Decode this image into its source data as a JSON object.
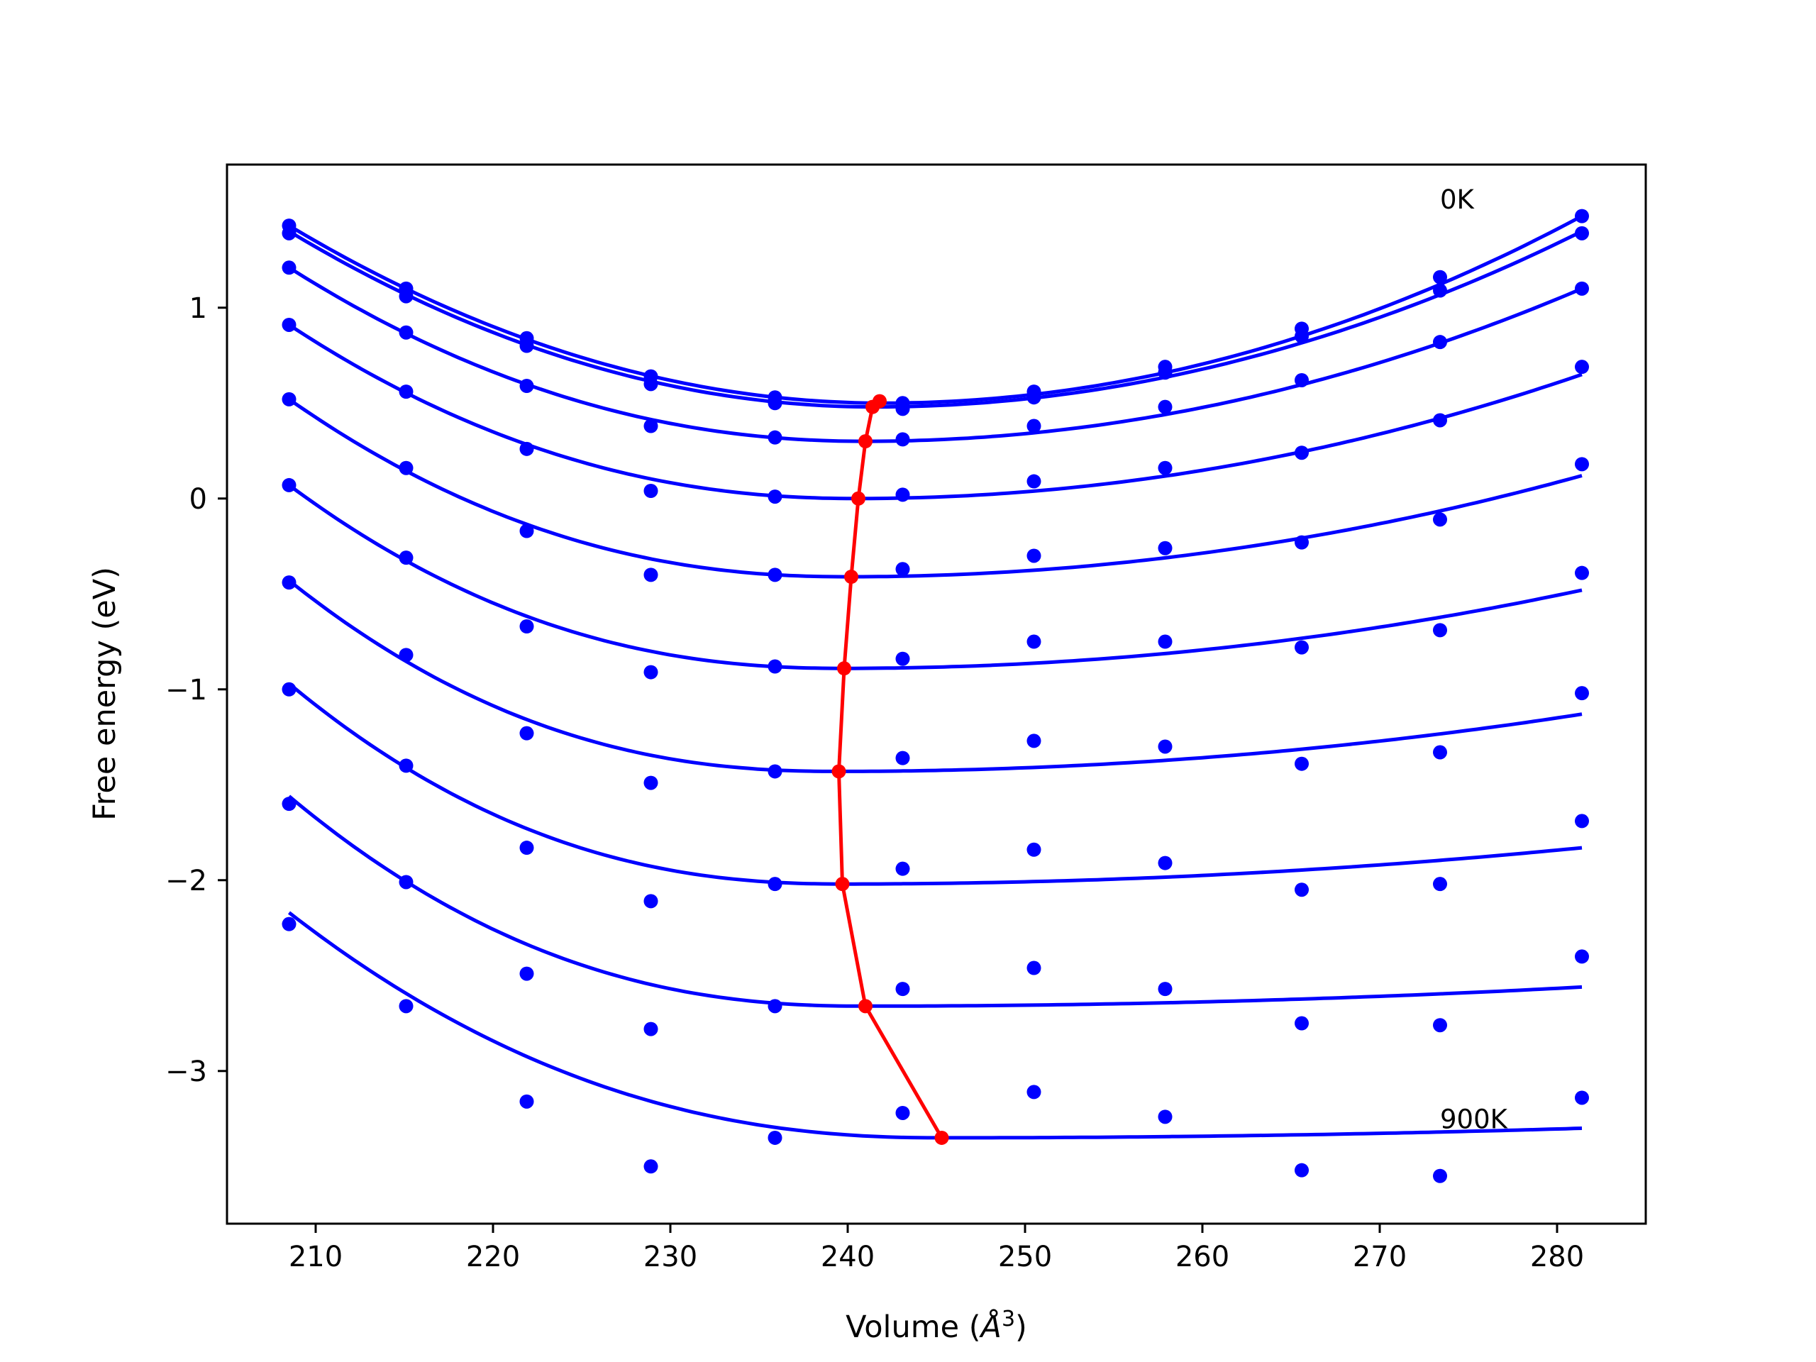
{
  "chart_data": {
    "type": "line",
    "xlabel": "Volume (",
    "xlabel_unit": "Å",
    "xlabel_exp": "3",
    "xlabel_close": ")",
    "ylabel": "Free energy (eV)",
    "xlim": [
      205,
      285
    ],
    "ylim": [
      -3.8,
      1.75
    ],
    "xticks": [
      210,
      220,
      230,
      240,
      250,
      260,
      270,
      280
    ],
    "xtick_labels": [
      "210",
      "220",
      "230",
      "240",
      "250",
      "260",
      "270",
      "280"
    ],
    "yticks": [
      1,
      0,
      -1,
      -2,
      -3
    ],
    "ytick_labels": [
      "1",
      "0",
      "−1",
      "−2",
      "−3"
    ],
    "annotations": [
      {
        "text": "0K",
        "x": 273.4,
        "y": 1.52
      },
      {
        "text": "900K",
        "x": 273.4,
        "y": -3.3
      }
    ],
    "colors": {
      "curves": "#0000ff",
      "points": "#0000ff",
      "minima": "#ff0000"
    },
    "volumes": [
      208.5,
      215.1,
      221.9,
      228.9,
      235.9,
      243.1,
      250.5,
      257.9,
      265.6,
      273.4,
      281.4
    ],
    "series": [
      {
        "points": [
          1.43,
          1.1,
          0.84,
          0.64,
          0.53,
          0.5,
          0.56,
          0.69,
          0.89,
          1.16,
          1.48
        ],
        "curve": {
          "y_left": 1.43,
          "y_right": 1.48,
          "xmin": 242.0,
          "fmin": 0.5,
          "skew": 0.0
        }
      },
      {
        "points": [
          1.39,
          1.06,
          0.8,
          0.6,
          0.5,
          0.47,
          0.53,
          0.66,
          0.85,
          1.09,
          1.39
        ],
        "curve": {
          "y_left": 1.4,
          "y_right": 1.4,
          "xmin": 241.5,
          "fmin": 0.48,
          "skew": 0.0
        }
      },
      {
        "points": [
          1.21,
          0.87,
          0.59,
          0.38,
          0.32,
          0.31,
          0.38,
          0.48,
          0.62,
          0.82,
          1.1
        ],
        "curve": {
          "y_left": 1.21,
          "y_right": 1.1,
          "xmin": 241.0,
          "fmin": 0.3,
          "skew": 0.1
        }
      },
      {
        "points": [
          0.91,
          0.56,
          0.26,
          0.04,
          0.01,
          0.02,
          0.09,
          0.16,
          0.24,
          0.41,
          0.69
        ],
        "curve": {
          "y_left": 0.91,
          "y_right": 0.65,
          "xmin": 240.5,
          "fmin": 0.0,
          "skew": 0.15
        }
      },
      {
        "points": [
          0.52,
          0.16,
          -0.17,
          -0.4,
          -0.4,
          -0.37,
          -0.3,
          -0.26,
          -0.23,
          -0.11,
          0.18
        ],
        "curve": {
          "y_left": 0.52,
          "y_right": 0.12,
          "xmin": 240.0,
          "fmin": -0.41,
          "skew": 0.2
        }
      },
      {
        "points": [
          0.07,
          -0.31,
          -0.67,
          -0.91,
          -0.88,
          -0.84,
          -0.75,
          -0.75,
          -0.78,
          -0.69,
          -0.39
        ],
        "curve": {
          "y_left": 0.07,
          "y_right": -0.48,
          "xmin": 239.8,
          "fmin": -0.89,
          "skew": 0.25
        }
      },
      {
        "points": [
          -0.44,
          -0.82,
          -1.23,
          -1.49,
          -1.43,
          -1.36,
          -1.27,
          -1.3,
          -1.39,
          -1.33,
          -1.02
        ],
        "curve": {
          "y_left": -0.43,
          "y_right": -1.13,
          "xmin": 239.5,
          "fmin": -1.43,
          "skew": 0.3
        }
      },
      {
        "points": [
          -1.0,
          -1.4,
          -1.83,
          -2.11,
          -2.02,
          -1.94,
          -1.84,
          -1.91,
          -2.05,
          -2.02,
          -1.69
        ],
        "curve": {
          "y_left": -0.97,
          "y_right": -1.83,
          "xmin": 239.8,
          "fmin": -2.02,
          "skew": 0.3
        }
      },
      {
        "points": [
          -1.6,
          -2.01,
          -2.49,
          -2.78,
          -2.66,
          -2.57,
          -2.46,
          -2.57,
          -2.75,
          -2.76,
          -2.4
        ],
        "curve": {
          "y_left": -1.56,
          "y_right": -2.56,
          "xmin": 241.0,
          "fmin": -2.66,
          "skew": 0.3
        }
      },
      {
        "points": [
          -2.23,
          -2.66,
          -3.16,
          -3.5,
          -3.35,
          -3.22,
          -3.11,
          -3.24,
          -3.52,
          -3.55,
          -3.14
        ],
        "curve": {
          "y_left": -2.17,
          "y_right": -3.3,
          "xmin": 245.3,
          "fmin": -3.35,
          "skew": 0.25
        }
      }
    ],
    "minima_line": {
      "x": [
        241.8,
        241.4,
        241.0,
        240.6,
        240.2,
        239.8,
        239.5,
        239.7,
        241.0,
        245.3
      ],
      "y": [
        0.51,
        0.48,
        0.3,
        0.0,
        -0.41,
        -0.89,
        -1.43,
        -2.02,
        -2.66,
        -3.35
      ]
    }
  }
}
